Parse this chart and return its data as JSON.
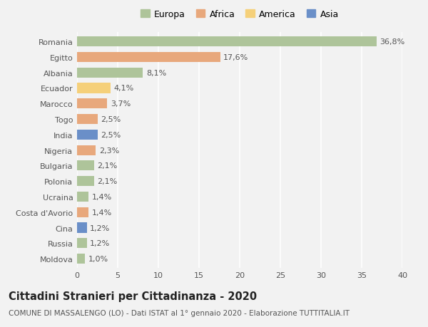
{
  "countries": [
    "Romania",
    "Egitto",
    "Albania",
    "Ecuador",
    "Marocco",
    "Togo",
    "India",
    "Nigeria",
    "Bulgaria",
    "Polonia",
    "Ucraina",
    "Costa d'Avorio",
    "Cina",
    "Russia",
    "Moldova"
  ],
  "values": [
    36.8,
    17.6,
    8.1,
    4.1,
    3.7,
    2.5,
    2.5,
    2.3,
    2.1,
    2.1,
    1.4,
    1.4,
    1.2,
    1.2,
    1.0
  ],
  "labels": [
    "36,8%",
    "17,6%",
    "8,1%",
    "4,1%",
    "3,7%",
    "2,5%",
    "2,5%",
    "2,3%",
    "2,1%",
    "2,1%",
    "1,4%",
    "1,4%",
    "1,2%",
    "1,2%",
    "1,0%"
  ],
  "continents": [
    "Europa",
    "Africa",
    "Europa",
    "America",
    "Africa",
    "Africa",
    "Asia",
    "Africa",
    "Europa",
    "Europa",
    "Europa",
    "Africa",
    "Asia",
    "Europa",
    "Europa"
  ],
  "colors": {
    "Europa": "#aec49a",
    "Africa": "#e8a87c",
    "America": "#f5d07a",
    "Asia": "#6a8fc8"
  },
  "legend_order": [
    "Europa",
    "Africa",
    "America",
    "Asia"
  ],
  "background_color": "#f2f2f2",
  "title": "Cittadini Stranieri per Cittadinanza - 2020",
  "subtitle": "COMUNE DI MASSALENGO (LO) - Dati ISTAT al 1° gennaio 2020 - Elaborazione TUTTITALIA.IT",
  "xlim": [
    0,
    40
  ],
  "xticks": [
    0,
    5,
    10,
    15,
    20,
    25,
    30,
    35,
    40
  ],
  "bar_height": 0.65,
  "label_fontsize": 8,
  "tick_fontsize": 8,
  "title_fontsize": 10.5,
  "subtitle_fontsize": 7.5,
  "legend_fontsize": 9
}
